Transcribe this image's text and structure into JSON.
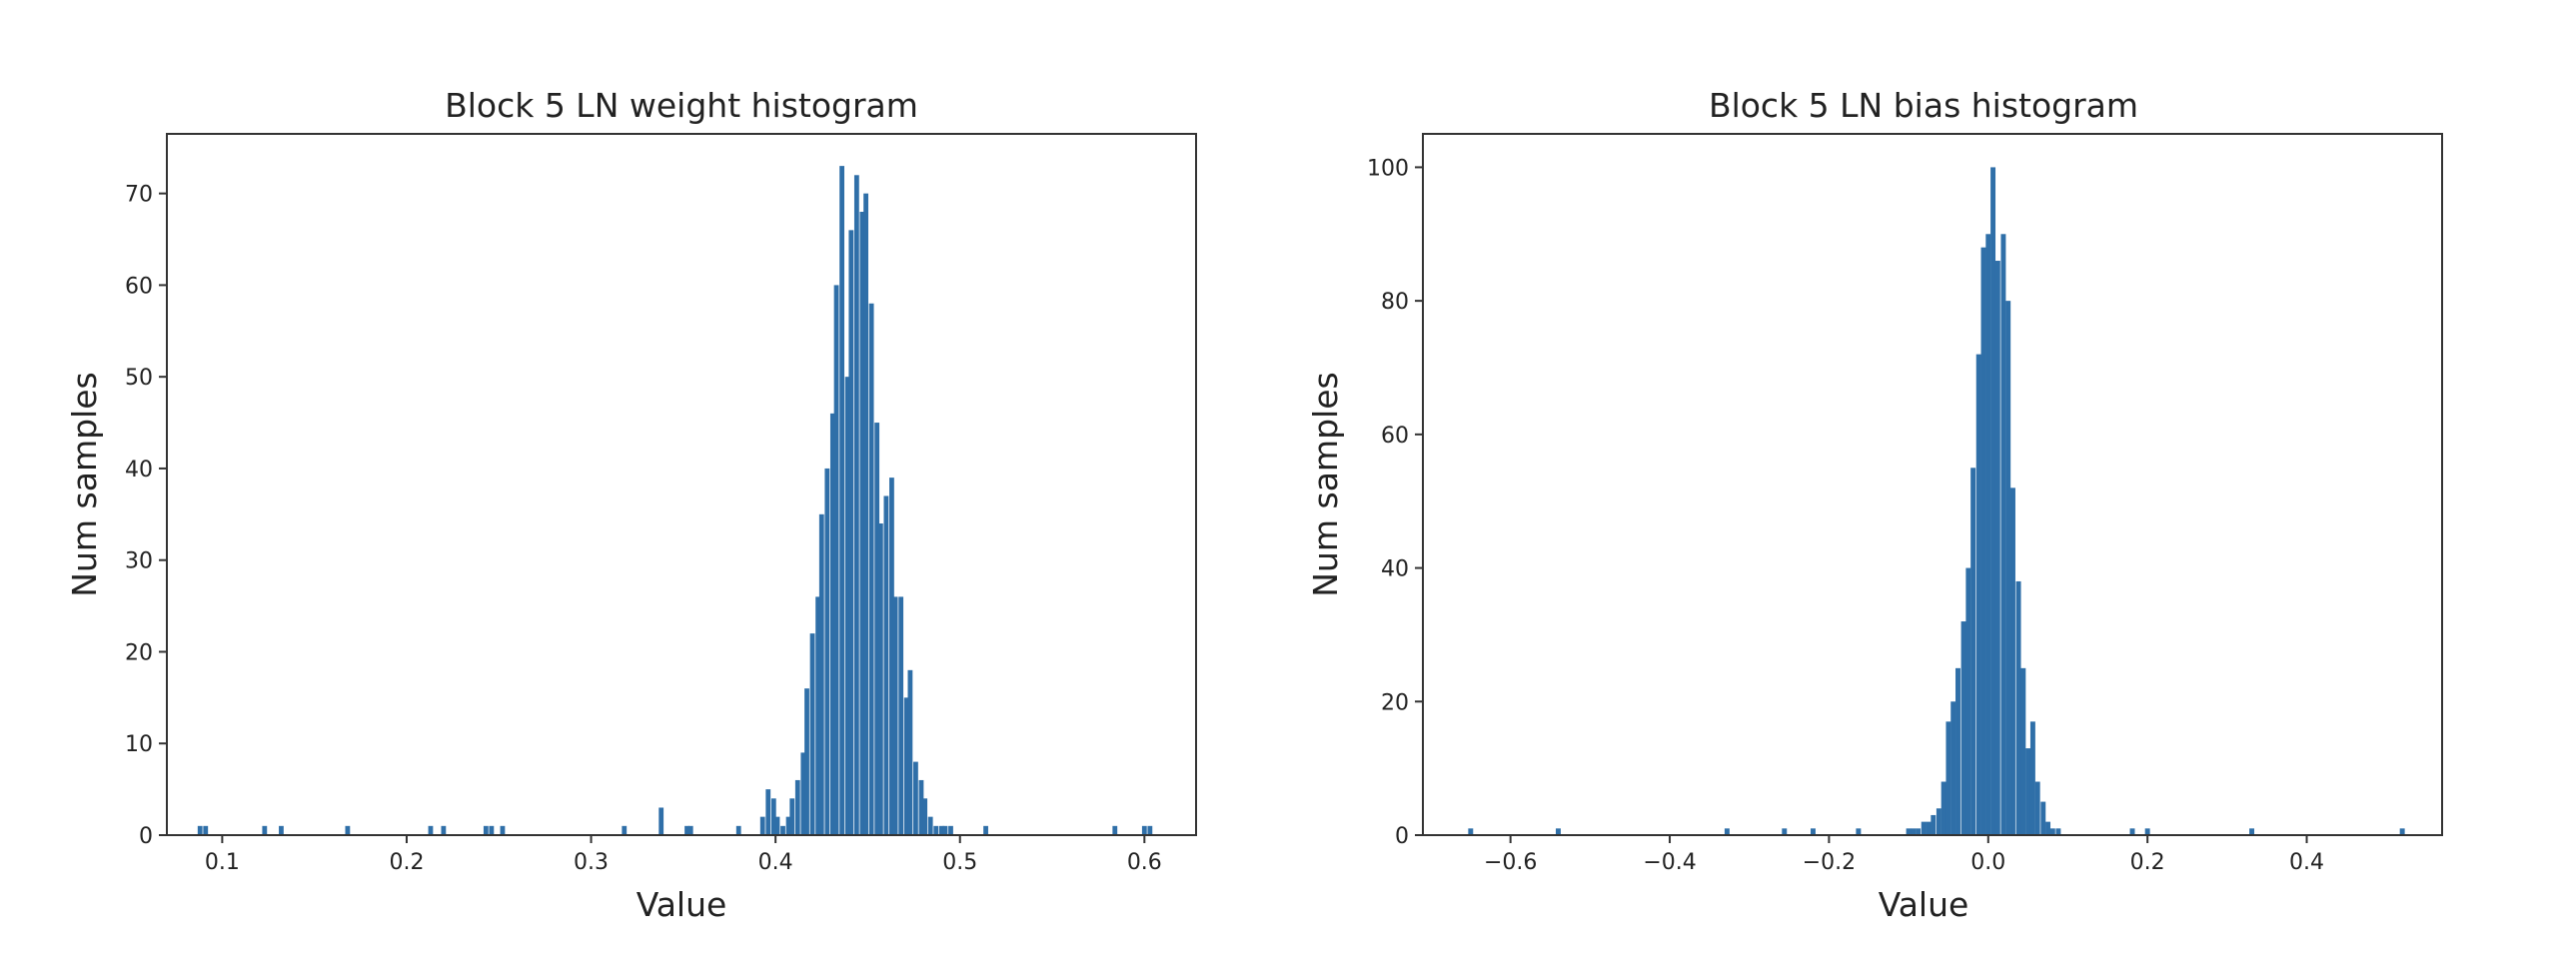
{
  "colors": {
    "bar": "#2f6fa8",
    "axes": "#333333",
    "background": "#ffffff"
  },
  "chart_data": [
    {
      "type": "bar",
      "title": "Block 5 LN weight histogram",
      "xlabel": "Value",
      "ylabel": "Num samples",
      "xlim": [
        0.07,
        0.628
      ],
      "ylim": [
        0,
        76.5
      ],
      "grid": false,
      "xticks": [
        {
          "value": 0.1,
          "label": "0.1"
        },
        {
          "value": 0.2,
          "label": "0.2"
        },
        {
          "value": 0.3,
          "label": "0.3"
        },
        {
          "value": 0.4,
          "label": "0.4"
        },
        {
          "value": 0.5,
          "label": "0.5"
        },
        {
          "value": 0.6,
          "label": "0.6"
        }
      ],
      "yticks": [
        {
          "value": 0,
          "label": "0"
        },
        {
          "value": 10,
          "label": "10"
        },
        {
          "value": 20,
          "label": "20"
        },
        {
          "value": 30,
          "label": "30"
        },
        {
          "value": 40,
          "label": "40"
        },
        {
          "value": 50,
          "label": "50"
        },
        {
          "value": 60,
          "label": "60"
        },
        {
          "value": 70,
          "label": "70"
        }
      ],
      "bin_width": 0.0026,
      "bins": [
        [
          0.088,
          1
        ],
        [
          0.091,
          1
        ],
        [
          0.123,
          1
        ],
        [
          0.132,
          1
        ],
        [
          0.168,
          1
        ],
        [
          0.213,
          1
        ],
        [
          0.22,
          1
        ],
        [
          0.243,
          1
        ],
        [
          0.246,
          1
        ],
        [
          0.252,
          1
        ],
        [
          0.318,
          1
        ],
        [
          0.338,
          3
        ],
        [
          0.352,
          1
        ],
        [
          0.354,
          1
        ],
        [
          0.38,
          1
        ],
        [
          0.393,
          2
        ],
        [
          0.396,
          5
        ],
        [
          0.399,
          4
        ],
        [
          0.401,
          2
        ],
        [
          0.404,
          1
        ],
        [
          0.407,
          2
        ],
        [
          0.409,
          4
        ],
        [
          0.412,
          6
        ],
        [
          0.415,
          9
        ],
        [
          0.417,
          16
        ],
        [
          0.42,
          22
        ],
        [
          0.423,
          26
        ],
        [
          0.425,
          35
        ],
        [
          0.428,
          40
        ],
        [
          0.431,
          46
        ],
        [
          0.433,
          60
        ],
        [
          0.436,
          73
        ],
        [
          0.439,
          50
        ],
        [
          0.441,
          66
        ],
        [
          0.444,
          72
        ],
        [
          0.447,
          68
        ],
        [
          0.449,
          70
        ],
        [
          0.452,
          58
        ],
        [
          0.455,
          45
        ],
        [
          0.457,
          34
        ],
        [
          0.46,
          37
        ],
        [
          0.463,
          39
        ],
        [
          0.465,
          26
        ],
        [
          0.468,
          26
        ],
        [
          0.471,
          15
        ],
        [
          0.473,
          18
        ],
        [
          0.476,
          8
        ],
        [
          0.479,
          6
        ],
        [
          0.481,
          4
        ],
        [
          0.484,
          2
        ],
        [
          0.487,
          1
        ],
        [
          0.49,
          1
        ],
        [
          0.492,
          1
        ],
        [
          0.495,
          1
        ],
        [
          0.514,
          1
        ],
        [
          0.584,
          1
        ],
        [
          0.6,
          1
        ],
        [
          0.603,
          1
        ]
      ]
    },
    {
      "type": "bar",
      "title": "Block 5 LN bias histogram",
      "xlabel": "Value",
      "ylabel": "Num samples",
      "xlim": [
        -0.71,
        0.57
      ],
      "ylim": [
        0,
        105
      ],
      "grid": false,
      "xticks": [
        {
          "value": -0.6,
          "label": "−0.6"
        },
        {
          "value": -0.4,
          "label": "−0.4"
        },
        {
          "value": -0.2,
          "label": "−0.2"
        },
        {
          "value": 0.0,
          "label": "0.0"
        },
        {
          "value": 0.2,
          "label": "0.2"
        },
        {
          "value": 0.4,
          "label": "0.4"
        }
      ],
      "yticks": [
        {
          "value": 0,
          "label": "0"
        },
        {
          "value": 20,
          "label": "20"
        },
        {
          "value": 40,
          "label": "40"
        },
        {
          "value": 60,
          "label": "60"
        },
        {
          "value": 80,
          "label": "80"
        },
        {
          "value": 100,
          "label": "100"
        }
      ],
      "bin_width": 0.0062,
      "bins": [
        [
          -0.65,
          1
        ],
        [
          -0.54,
          1
        ],
        [
          -0.328,
          1
        ],
        [
          -0.256,
          1
        ],
        [
          -0.22,
          1
        ],
        [
          -0.163,
          1
        ],
        [
          -0.1,
          1
        ],
        [
          -0.094,
          1
        ],
        [
          -0.088,
          1
        ],
        [
          -0.081,
          2
        ],
        [
          -0.075,
          2
        ],
        [
          -0.069,
          3
        ],
        [
          -0.062,
          4
        ],
        [
          -0.056,
          8
        ],
        [
          -0.05,
          17
        ],
        [
          -0.044,
          20
        ],
        [
          -0.038,
          25
        ],
        [
          -0.031,
          32
        ],
        [
          -0.025,
          40
        ],
        [
          -0.019,
          55
        ],
        [
          -0.012,
          72
        ],
        [
          -0.006,
          88
        ],
        [
          0.0,
          90
        ],
        [
          0.006,
          100
        ],
        [
          0.012,
          86
        ],
        [
          0.019,
          90
        ],
        [
          0.025,
          80
        ],
        [
          0.031,
          52
        ],
        [
          0.038,
          38
        ],
        [
          0.044,
          25
        ],
        [
          0.05,
          13
        ],
        [
          0.056,
          17
        ],
        [
          0.062,
          8
        ],
        [
          0.069,
          5
        ],
        [
          0.075,
          2
        ],
        [
          0.081,
          1
        ],
        [
          0.088,
          1
        ],
        [
          0.181,
          1
        ],
        [
          0.2,
          1
        ],
        [
          0.331,
          1
        ],
        [
          0.52,
          1
        ]
      ]
    }
  ]
}
